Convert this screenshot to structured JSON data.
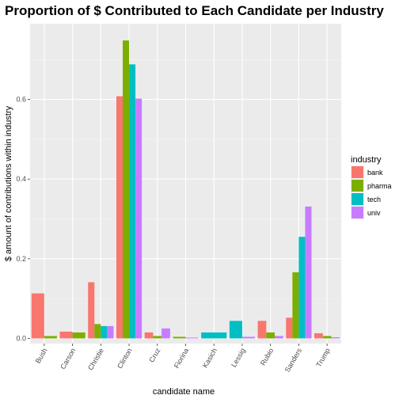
{
  "chart_data": {
    "type": "bar",
    "title": "Proportion of $ Contributed to Each Candidate per Industry",
    "xlabel": "candidate name",
    "ylabel": "$ amount of contributions within industry",
    "ylim": [
      -0.013,
      0.79
    ],
    "yticks": [
      0.0,
      0.2,
      0.4,
      0.6
    ],
    "ytick_labels": [
      "0.0",
      "0.2",
      "0.4",
      "0.6"
    ],
    "grid": true,
    "legend_title": "industry",
    "legend_position": "right",
    "categories": [
      "Bush",
      "Carson",
      "Christie",
      "Clinton",
      "Cruz",
      "Fiorina",
      "Kasich",
      "Lessig",
      "Rubio",
      "Sanders",
      "Trump"
    ],
    "series": [
      {
        "name": "bank",
        "color": "#F8766D",
        "values": {
          "Bush": 0.113,
          "Carson": 0.017,
          "Christie": 0.141,
          "Clinton": 0.608,
          "Cruz": 0.015,
          "Rubio": 0.044,
          "Sanders": 0.052,
          "Trump": 0.013
        }
      },
      {
        "name": "pharma",
        "color": "#7CAE00",
        "values": {
          "Bush": 0.006,
          "Carson": 0.015,
          "Christie": 0.036,
          "Clinton": 0.748,
          "Cruz": 0.006,
          "Fiorina": 0.004,
          "Rubio": 0.015,
          "Sanders": 0.166,
          "Trump": 0.006
        }
      },
      {
        "name": "tech",
        "color": "#00BFC4",
        "values": {
          "Christie": 0.031,
          "Clinton": 0.688,
          "Kasich": 0.015,
          "Lessig": 0.044,
          "Sanders": 0.255
        }
      },
      {
        "name": "univ",
        "color": "#C77CFF",
        "values": {
          "Christie": 0.031,
          "Clinton": 0.602,
          "Cruz": 0.025,
          "Fiorina": 0.002,
          "Lessig": 0.004,
          "Rubio": 0.006,
          "Sanders": 0.331,
          "Trump": 0.003
        }
      }
    ]
  }
}
